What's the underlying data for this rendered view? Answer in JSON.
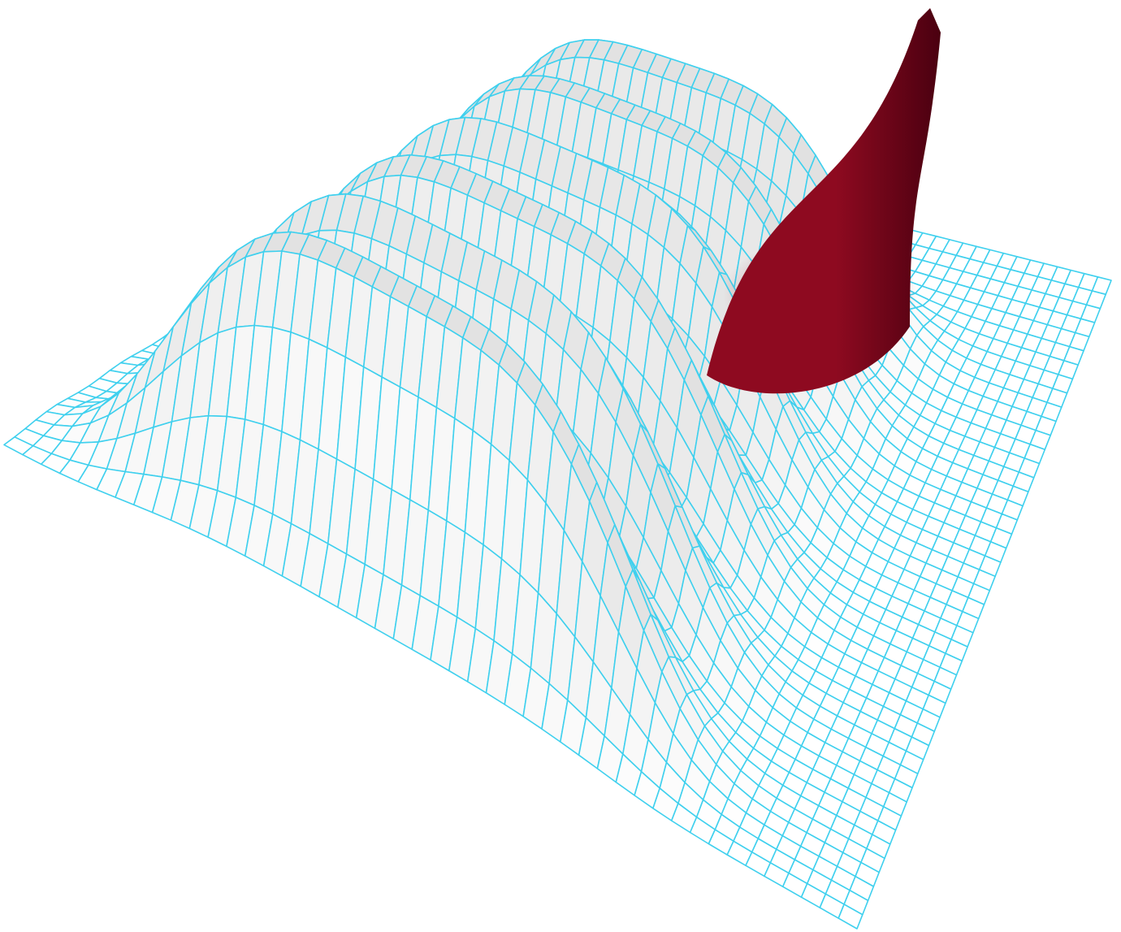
{
  "scene": {
    "type": "3d-surface-wireframe",
    "ridge_count": 6,
    "ridge_relative_heights": [
      1.0,
      0.93,
      0.86,
      0.8,
      0.74,
      0.68
    ],
    "highlighted_peak_relative_height": 1.35,
    "mesh_resolution": [
      46,
      46
    ]
  },
  "colors": {
    "background": "#ffffff",
    "wireframe": "#3fd0ee",
    "surface_light": "#ffffff",
    "surface_shade": "#b9b9b9",
    "highlight_peak": "#8e0a20",
    "highlight_peak_dark": "#4a0010"
  }
}
